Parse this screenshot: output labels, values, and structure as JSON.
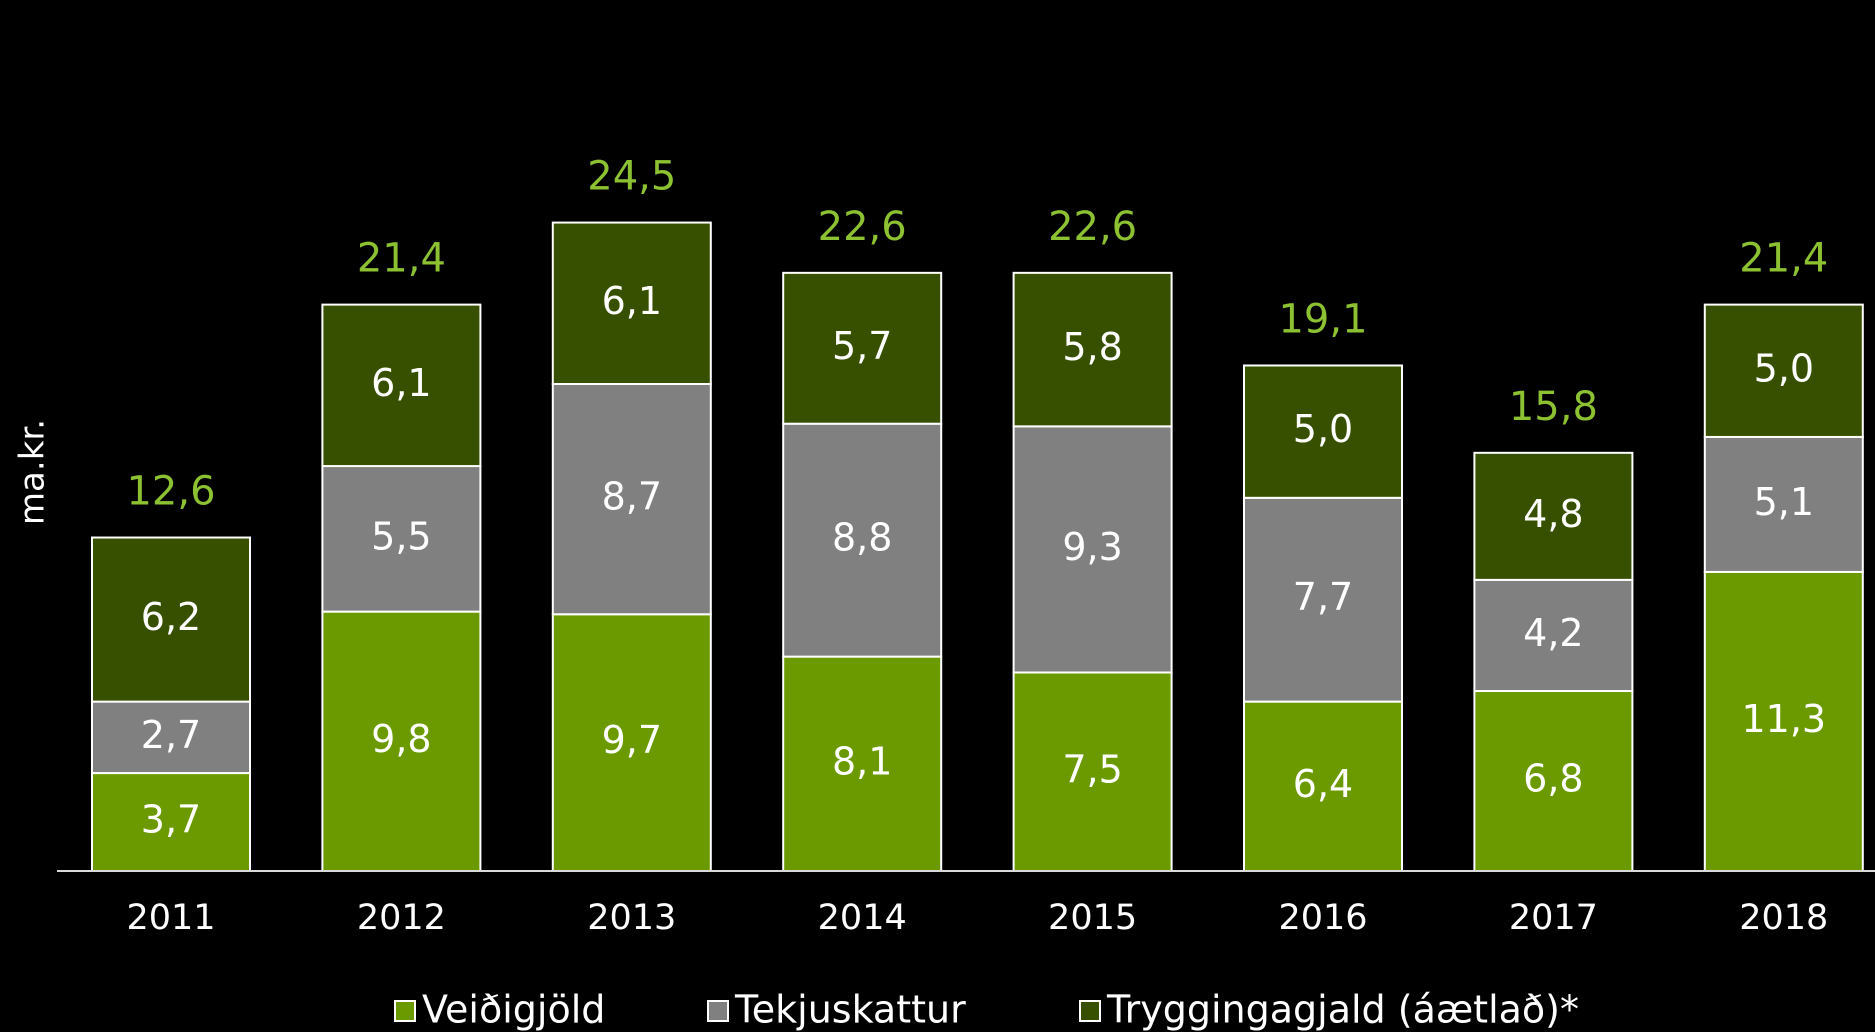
{
  "chart_data": {
    "type": "stacked_bar",
    "y_label": "ma.kr.",
    "categories": [
      "2011",
      "2012",
      "2013",
      "2014",
      "2015",
      "2016",
      "2017",
      "2018"
    ],
    "series": [
      {
        "name": "Veiðigjöld",
        "color": "#6a9a00",
        "values": [
          3.7,
          9.8,
          9.7,
          8.1,
          7.5,
          6.4,
          6.8,
          11.3
        ],
        "value_labels": [
          "3,7",
          "9,8",
          "9,7",
          "8,1",
          "7,5",
          "6,4",
          "6,8",
          "11,3"
        ]
      },
      {
        "name": "Tekjuskattur",
        "color": "#808080",
        "values": [
          2.7,
          5.5,
          8.7,
          8.8,
          9.3,
          7.7,
          4.2,
          5.1
        ],
        "value_labels": [
          "2,7",
          "5,5",
          "8,7",
          "8,8",
          "9,3",
          "7,7",
          "4,2",
          "5,1"
        ]
      },
      {
        "name": "Tryggingagjald (áætlað)*",
        "color": "#375000",
        "values": [
          6.2,
          6.1,
          6.1,
          5.7,
          5.8,
          5.0,
          4.8,
          5.0
        ],
        "value_labels": [
          "6,2",
          "6,1",
          "6,1",
          "5,7",
          "5,8",
          "5,0",
          "4,8",
          "5,0"
        ]
      }
    ],
    "totals": [
      12.6,
      21.4,
      24.5,
      22.6,
      22.6,
      19.1,
      15.8,
      21.4
    ],
    "total_labels": [
      "12,6",
      "21,4",
      "24,5",
      "22,6",
      "22,6",
      "19,1",
      "15,8",
      "21,4"
    ],
    "total_color": "#8cc131",
    "ylim": [
      0,
      30
    ]
  }
}
